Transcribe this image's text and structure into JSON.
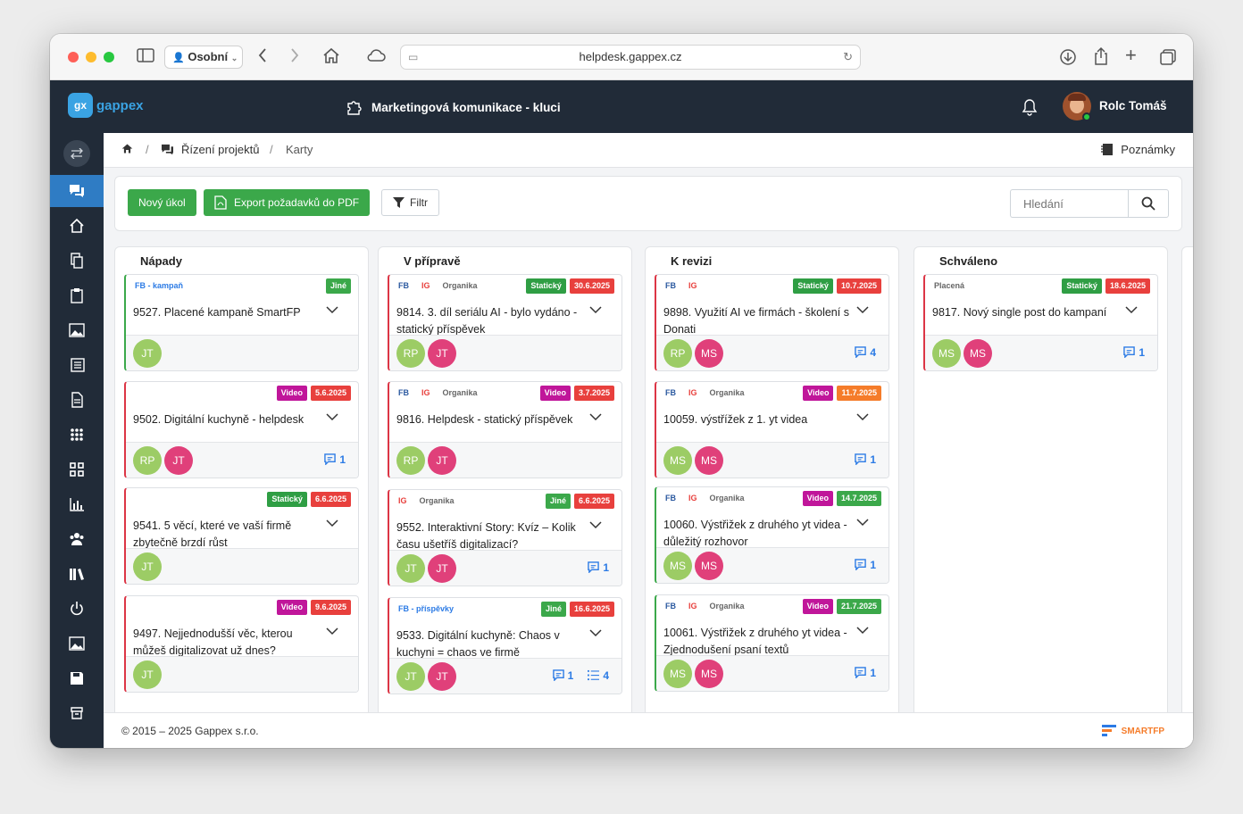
{
  "browser": {
    "profile": "Osobní",
    "url": "helpdesk.gappex.cz"
  },
  "app": {
    "logo_text": "gappex",
    "project_title": "Marketingová komunikace - kluci",
    "user_name": "Rolc Tomáš"
  },
  "breadcrumb": {
    "section": "Řízení projektů",
    "page": "Karty",
    "notes": "Poznámky"
  },
  "toolbar": {
    "new_task": "Nový úkol",
    "export_pdf": "Export požadavků do PDF",
    "filter": "Filtr",
    "search_placeholder": "Hledání"
  },
  "columns": [
    {
      "title": "Nápady",
      "cards": [
        {
          "chips": [
            "FB - kampaň"
          ],
          "chip_color": "#2c7be5",
          "badges": [
            {
              "label": "Jiné",
              "color": "#3ba84a"
            }
          ],
          "title": "9527. Placené kampaně SmartFP",
          "avatars": [
            "JT"
          ],
          "comments": "",
          "tasks": "",
          "border": "green"
        },
        {
          "chips": [],
          "badges": [
            {
              "label": "Video",
              "color": "#c0169a"
            },
            {
              "label": "5.6.2025",
              "color": "#e8403d"
            }
          ],
          "title": "9502. Digitální kuchyně - helpdesk",
          "avatars": [
            "RP",
            "JT"
          ],
          "comments": "1",
          "tasks": "",
          "border": "red"
        },
        {
          "chips": [],
          "badges": [
            {
              "label": "Statický",
              "color": "#2f9e44"
            },
            {
              "label": "6.6.2025",
              "color": "#e8403d"
            }
          ],
          "title": "9541. 5 věcí, které ve vaší firmě zbytečně brzdí růst",
          "avatars": [
            "JT"
          ],
          "comments": "",
          "tasks": "",
          "border": "red"
        },
        {
          "chips": [],
          "badges": [
            {
              "label": "Video",
              "color": "#c0169a"
            },
            {
              "label": "9.6.2025",
              "color": "#e8403d"
            }
          ],
          "title": "9497. Nejjednodušší věc, kterou můžeš digitalizovat už dnes?",
          "avatars": [
            "JT"
          ],
          "comments": "",
          "tasks": "",
          "border": "red"
        }
      ]
    },
    {
      "title": "V přípravě",
      "cards": [
        {
          "chips": [
            "FB",
            "IG",
            "Organika"
          ],
          "badges": [
            {
              "label": "Statický",
              "color": "#2f9e44"
            },
            {
              "label": "30.6.2025",
              "color": "#e8403d"
            }
          ],
          "title": "9814. 3. díl seriálu AI - bylo vydáno - statický příspěvek",
          "avatars": [
            "RP",
            "JT"
          ],
          "comments": "",
          "tasks": "",
          "border": "red"
        },
        {
          "chips": [
            "FB",
            "IG",
            "Organika"
          ],
          "badges": [
            {
              "label": "Video",
              "color": "#c0169a"
            },
            {
              "label": "3.7.2025",
              "color": "#e8403d"
            }
          ],
          "title": "9816. Helpdesk - statický příspěvek",
          "avatars": [
            "RP",
            "JT"
          ],
          "comments": "",
          "tasks": "",
          "border": "red"
        },
        {
          "chips": [
            "IG",
            "Organika"
          ],
          "badges": [
            {
              "label": "Jiné",
              "color": "#3ba84a"
            },
            {
              "label": "6.6.2025",
              "color": "#e8403d"
            }
          ],
          "title": "9552. Interaktivní Story: Kvíz – Kolik času ušetříš digitalizací?",
          "avatars": [
            "JT",
            "JT"
          ],
          "comments": "1",
          "tasks": "",
          "border": "red"
        },
        {
          "chips": [
            "FB - příspěvky"
          ],
          "chip_color": "#2c7be5",
          "badges": [
            {
              "label": "Jiné",
              "color": "#3ba84a"
            },
            {
              "label": "16.6.2025",
              "color": "#e8403d"
            }
          ],
          "title": "9533. Digitální kuchyně: Chaos v kuchyni = chaos ve firmě",
          "avatars": [
            "JT",
            "JT"
          ],
          "comments": "1",
          "tasks": "4",
          "border": "red"
        }
      ]
    },
    {
      "title": "K revizi",
      "cards": [
        {
          "chips": [
            "FB",
            "IG"
          ],
          "badges": [
            {
              "label": "Statický",
              "color": "#2f9e44"
            },
            {
              "label": "10.7.2025",
              "color": "#e8403d"
            }
          ],
          "title": "9898. Využití AI ve firmách - školení s Donati",
          "avatars": [
            "RP",
            "MS"
          ],
          "comments": "4",
          "tasks": "",
          "border": "red"
        },
        {
          "chips": [
            "FB",
            "IG",
            "Organika"
          ],
          "badges": [
            {
              "label": "Video",
              "color": "#c0169a"
            },
            {
              "label": "11.7.2025",
              "color": "#f57c2a"
            }
          ],
          "title": "10059. výstřížek z 1. yt videa",
          "avatars": [
            "MS",
            "MS"
          ],
          "comments": "1",
          "tasks": "",
          "border": "red"
        },
        {
          "chips": [
            "FB",
            "IG",
            "Organika"
          ],
          "badges": [
            {
              "label": "Video",
              "color": "#c0169a"
            },
            {
              "label": "14.7.2025",
              "color": "#3ba84a"
            }
          ],
          "title": "10060. Výstřižek z druhého yt videa - důležitý rozhovor",
          "avatars": [
            "MS",
            "MS"
          ],
          "comments": "1",
          "tasks": "",
          "border": "green"
        },
        {
          "chips": [
            "FB",
            "IG",
            "Organika"
          ],
          "badges": [
            {
              "label": "Video",
              "color": "#c0169a"
            },
            {
              "label": "21.7.2025",
              "color": "#3ba84a"
            }
          ],
          "title": "10061. Výstřižek z druhého yt videa - Zjednodušení psaní textů",
          "avatars": [
            "MS",
            "MS"
          ],
          "comments": "1",
          "tasks": "",
          "border": "green"
        }
      ]
    },
    {
      "title": "Schváleno",
      "cards": [
        {
          "chips": [
            "Placená"
          ],
          "badges": [
            {
              "label": "Statický",
              "color": "#2f9e44"
            },
            {
              "label": "18.6.2025",
              "color": "#e8403d"
            }
          ],
          "title": "9817. Nový single post do kampaní",
          "avatars": [
            "MS",
            "MS"
          ],
          "comments": "1",
          "tasks": "",
          "border": "red"
        }
      ]
    }
  ],
  "avatar_colors": {
    "JT": "#9ccc65",
    "RP": "#9ccc65",
    "MS_first": "#9ccc65",
    "MS": "#e0407a"
  },
  "footer": {
    "copyright": "© 2015 – 2025 Gappex s.r.o.",
    "brand": "SMARTFP"
  }
}
